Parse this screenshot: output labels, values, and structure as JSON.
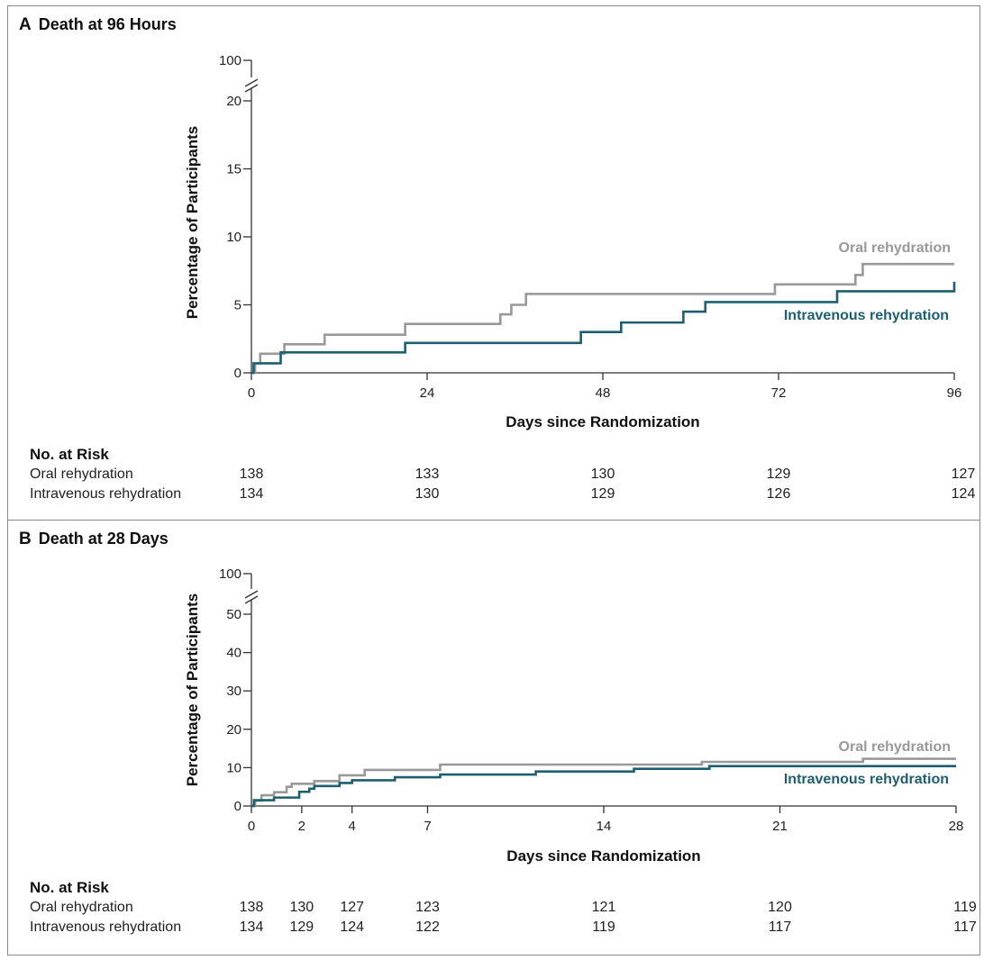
{
  "chart_data": [
    {
      "id": "A",
      "type": "line",
      "letter": "A",
      "title": "Death at 96 Hours",
      "xlabel": "Days since Randomization",
      "ylabel": "Percentage of Participants",
      "xlim": [
        0,
        96
      ],
      "ylim": [
        0,
        20
      ],
      "y_break_top": 100,
      "xticks": [
        0,
        24,
        48,
        72,
        96
      ],
      "yticks": [
        0,
        5,
        10,
        15,
        20
      ],
      "grid": false,
      "series": [
        {
          "name": "Oral rehydration",
          "color": "#999999",
          "x": [
            0,
            0.5,
            1.2,
            4.5,
            10,
            21,
            34,
            35.5,
            37.5,
            71.5,
            82.5,
            83.5,
            96
          ],
          "y": [
            0,
            0.7,
            1.4,
            2.1,
            2.8,
            3.6,
            4.3,
            5.0,
            5.8,
            6.5,
            7.2,
            8.0,
            8.0
          ]
        },
        {
          "name": "Intravenous rehydration",
          "color": "#1d5f70",
          "x": [
            0,
            0.3,
            4,
            21,
            45,
            50.5,
            59,
            62,
            80,
            96
          ],
          "y": [
            0,
            0.7,
            1.5,
            2.2,
            3.0,
            3.7,
            4.5,
            5.2,
            6.0,
            6.7
          ]
        }
      ],
      "risk_table": {
        "title": "No. at Risk",
        "rows": [
          {
            "label": "Oral rehydration",
            "values": [
              "138",
              "133",
              "130",
              "129",
              "127"
            ]
          },
          {
            "label": "Intravenous rehydration",
            "values": [
              "134",
              "130",
              "129",
              "126",
              "124"
            ]
          }
        ]
      }
    },
    {
      "id": "B",
      "type": "line",
      "letter": "B",
      "title": "Death at 28 Days",
      "xlabel": "Days since Randomization",
      "ylabel": "Percentage of Participants",
      "xlim": [
        0,
        28
      ],
      "ylim": [
        0,
        50
      ],
      "y_break_top": 100,
      "xticks": [
        0,
        2,
        4,
        7,
        14,
        21,
        28
      ],
      "yticks": [
        0,
        10,
        20,
        30,
        40,
        50
      ],
      "grid": false,
      "series": [
        {
          "name": "Oral rehydration",
          "color": "#999999",
          "x": [
            0,
            0.15,
            0.4,
            0.9,
            1.4,
            1.6,
            2.5,
            3.5,
            4.5,
            7.5,
            17.9,
            24.3,
            28
          ],
          "y": [
            0,
            1.4,
            2.8,
            3.6,
            5.0,
            5.8,
            6.5,
            8.0,
            9.4,
            10.8,
            11.5,
            12.3,
            12.3
          ]
        },
        {
          "name": "Intravenous rehydration",
          "color": "#1d5f70",
          "x": [
            0,
            0.1,
            0.9,
            1.9,
            2.3,
            2.5,
            3.5,
            4.0,
            5.7,
            7.5,
            11.3,
            15.2,
            18.2,
            28
          ],
          "y": [
            0,
            1.5,
            2.2,
            3.7,
            4.5,
            5.2,
            6.0,
            6.7,
            7.5,
            8.2,
            9.0,
            9.7,
            10.4,
            10.4
          ]
        }
      ],
      "risk_table": {
        "title": "No. at Risk",
        "rows": [
          {
            "label": "Oral rehydration",
            "values": [
              "138",
              "130",
              "127",
              "123",
              "121",
              "120",
              "119"
            ]
          },
          {
            "label": "Intravenous rehydration",
            "values": [
              "134",
              "129",
              "124",
              "122",
              "119",
              "117",
              "117"
            ]
          }
        ]
      }
    }
  ]
}
